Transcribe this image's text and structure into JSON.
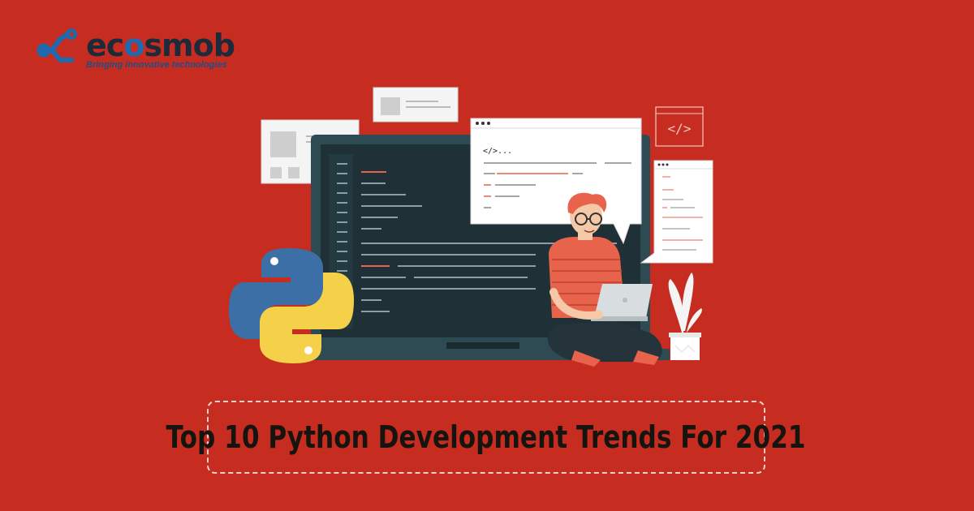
{
  "logo": {
    "brand_prefix": "ec",
    "brand_o": "o",
    "brand_suffix": "smob",
    "tagline": "Bringing innovative technologies",
    "icon": "ecosmob-logo-icon"
  },
  "illustration": {
    "code_tag": "</>...",
    "code_icon_text": "</>",
    "colors": {
      "background": "#c62d20",
      "monitor": "#2e4a52",
      "screen": "#1f3036",
      "python_blue": "#3c6fa6",
      "python_yellow": "#f5d14a",
      "shirt": "#e8634c",
      "hair": "#e8634c"
    }
  },
  "headline": {
    "text": "Top 10 Python Development Trends For 2021"
  }
}
